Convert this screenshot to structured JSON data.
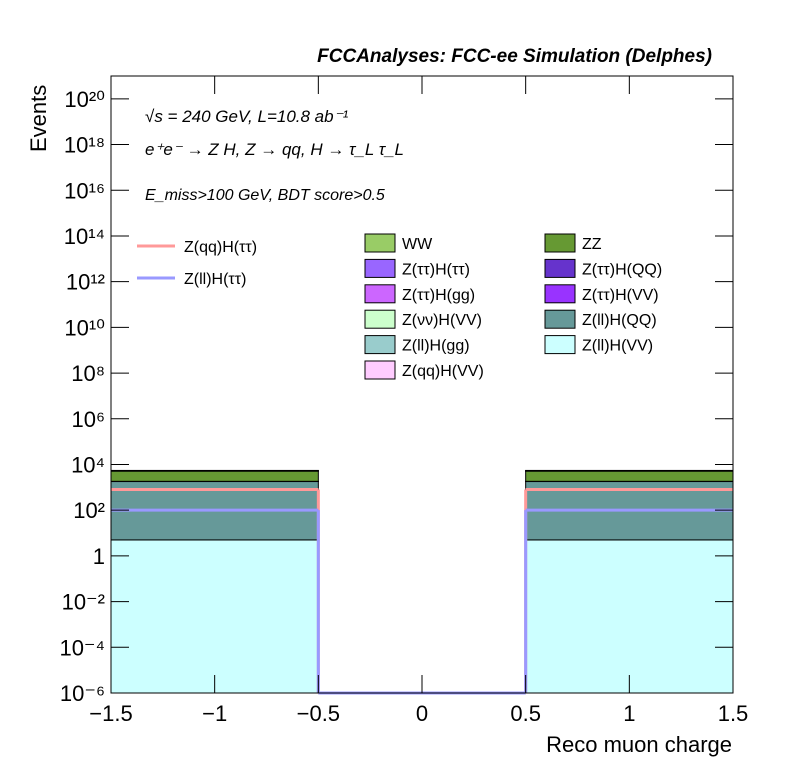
{
  "chart_data": {
    "type": "stacked_histogram",
    "title": "FCCAnalyses: FCC-ee Simulation (Delphes)",
    "annotations": [
      "√s = 240 GeV, L=10.8 ab⁻¹",
      "e⁺e⁻ → Z H, Z → qq, H → τ_L τ_L",
      "E_miss>100 GeV, BDT score>0.5"
    ],
    "x_label": "Reco muon charge",
    "y_label": "Events",
    "bins": [
      -1.5,
      -0.5,
      0.5,
      1.5
    ],
    "xlim": [
      -1.5,
      1.5
    ],
    "xticks": [
      {
        "value": -1.5,
        "label": "−1.5"
      },
      {
        "value": -1,
        "label": "−1"
      },
      {
        "value": -0.5,
        "label": "−0.5"
      },
      0,
      0.5,
      1,
      1.5
    ],
    "ylim": [
      1e-06,
      1e+21
    ],
    "log_y": true,
    "yticks": [
      {
        "value": 1e-06,
        "label": "10⁻⁶"
      },
      {
        "value": 0.0001,
        "label": "10⁻⁴"
      },
      {
        "value": 0.01,
        "label": "10⁻²"
      },
      1,
      {
        "value": 100,
        "label": "10²"
      },
      {
        "value": 10000,
        "label": "10⁴"
      },
      {
        "value": 1000000.0,
        "label": "10⁶"
      },
      {
        "value": 100000000.0,
        "label": "10⁸"
      },
      {
        "value": 10000000000.0,
        "label": "10¹⁰"
      },
      {
        "value": 1000000000000.0,
        "label": "10¹²"
      },
      {
        "value": 100000000000000.0,
        "label": "10¹⁴"
      },
      {
        "value": 1e+16,
        "label": "10¹⁶"
      },
      {
        "value": 1e+18,
        "label": "10¹⁸"
      },
      {
        "value": 1e+20,
        "label": "10²⁰"
      }
    ],
    "series": [
      {
        "name": "WW",
        "color": "#99cc66",
        "values": [
          200,
          0,
          200
        ]
      },
      {
        "name": "Z(ττ)H(ττ)",
        "color": "#9966ff",
        "values": [
          50,
          0,
          50
        ]
      },
      {
        "name": "Z(ττ)H(gg)",
        "color": "#cc66ff",
        "values": [
          40,
          0,
          40
        ]
      },
      {
        "name": "Z(νν)H(VV)",
        "color": "#ccffcc",
        "values": [
          47,
          0,
          47
        ]
      },
      {
        "name": "Z(ll)H(gg)",
        "color": "#99cccc",
        "values": [
          2.8,
          0,
          2.8
        ]
      },
      {
        "name": "Z(qq)H(VV)",
        "color": "#ffccff",
        "values": [
          20,
          0,
          20
        ]
      },
      {
        "name": "ZZ",
        "color": "#669933",
        "values": [
          3300,
          0,
          3300
        ]
      },
      {
        "name": "Z(ττ)H(QQ)",
        "color": "#6633cc",
        "values": [
          30,
          0,
          30
        ]
      },
      {
        "name": "Z(ττ)H(VV)",
        "color": "#9933ff",
        "values": [
          7.6,
          0,
          7.6
        ]
      },
      {
        "name": "Z(ll)H(QQ)",
        "color": "#669999",
        "values": [
          1790,
          0,
          1790
        ]
      },
      {
        "name": "Z(ll)H(VV)",
        "color": "#ccffff",
        "values": [
          5,
          0,
          5
        ]
      }
    ],
    "signals": [
      {
        "name": "Z(qq)H(ττ)",
        "color": "#ff9999",
        "values": [
          800,
          0,
          800
        ]
      },
      {
        "name": "Z(ll)H(ττ)",
        "color": "#9999ff",
        "values": [
          100,
          0,
          100
        ]
      }
    ]
  }
}
